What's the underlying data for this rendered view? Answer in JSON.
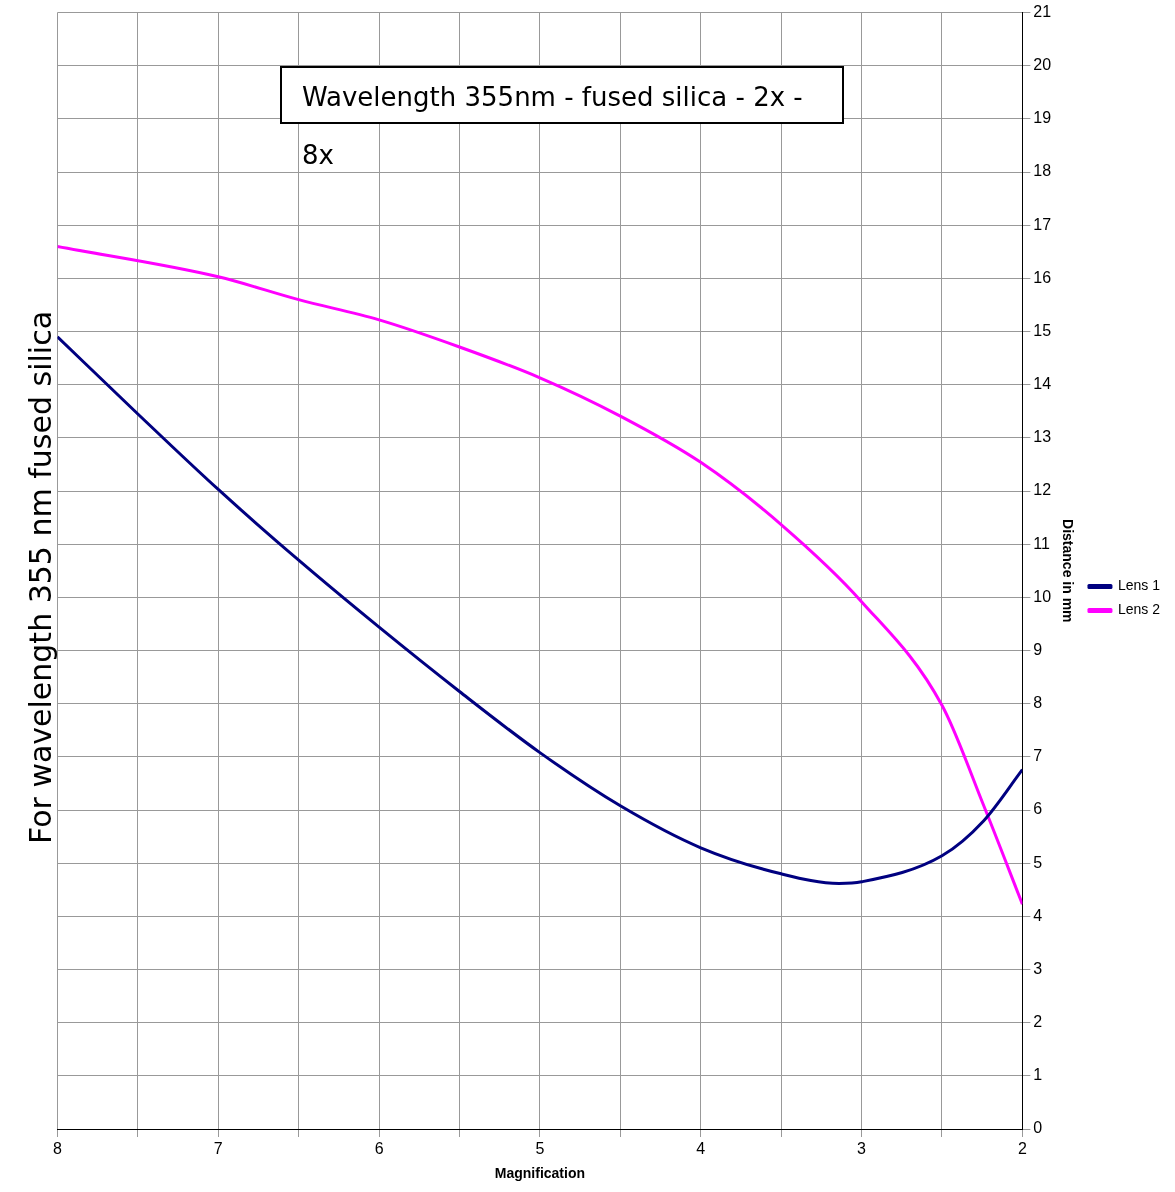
{
  "chart_data": {
    "type": "line",
    "title": "Wavelength 355nm - fused silica - 2x - 8x",
    "xlabel": "Magnification",
    "ylabel": "Distance in mm",
    "annotations": [
      "For wavelength 355 nm fused silica"
    ],
    "xlim": [
      8,
      2
    ],
    "xticks": [
      8,
      {
        "value": 7.5,
        "label": null
      },
      7,
      {
        "value": 6.5,
        "label": null
      },
      6,
      {
        "value": 5.5,
        "label": null
      },
      5,
      {
        "value": 4.5,
        "label": null
      },
      4,
      {
        "value": 3.5,
        "label": null
      },
      3,
      {
        "value": 2.5,
        "label": null
      },
      2
    ],
    "ylim": [
      0,
      21
    ],
    "yticks": [
      0,
      1,
      2,
      3,
      4,
      5,
      6,
      7,
      8,
      9,
      10,
      11,
      12,
      13,
      14,
      15,
      16,
      17,
      18,
      19,
      20,
      21
    ],
    "grid": true,
    "legend": "right",
    "marker": "none",
    "line_style": "solid",
    "series": [
      {
        "name": "Lens 1",
        "color": "#000080",
        "x": [
          8,
          7.5,
          7,
          6.5,
          6,
          5.5,
          5,
          4.5,
          4,
          3.5,
          3.14,
          3,
          2.5,
          2.24,
          2
        ],
        "values": [
          14.9,
          13.45,
          12.03,
          10.7,
          9.44,
          8.23,
          7.08,
          6.08,
          5.29,
          4.8,
          4.62,
          4.65,
          5.14,
          5.8,
          6.76
        ]
      },
      {
        "name": "Lens 2",
        "color": "#ff00ff",
        "x": [
          8,
          7,
          6.5,
          6,
          5.5,
          5,
          4.5,
          4,
          3.5,
          3,
          2.5,
          2.24,
          2
        ],
        "values": [
          16.6,
          16.03,
          15.6,
          15.22,
          14.71,
          14.13,
          13.41,
          12.54,
          11.37,
          9.92,
          7.97,
          6.08,
          4.23
        ]
      }
    ]
  }
}
